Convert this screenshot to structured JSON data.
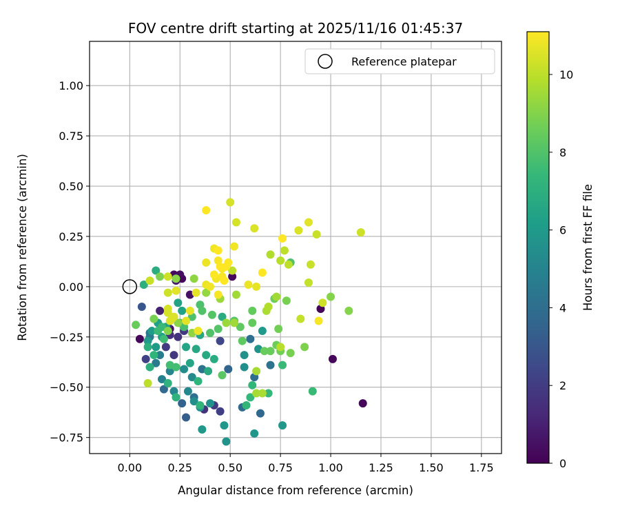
{
  "chart_data": {
    "type": "scatter",
    "title": "FOV centre drift starting at 2025/11/16 01:45:37",
    "xlabel": "Angular distance from reference (arcmin)",
    "ylabel": "Rotation from reference (arcmin)",
    "xlim": [
      -0.2,
      1.85
    ],
    "ylim": [
      -0.83,
      1.22
    ],
    "xticks": [
      0.0,
      0.25,
      0.5,
      0.75,
      1.0,
      1.25,
      1.5,
      1.75
    ],
    "xtick_labels": [
      "0.00",
      "0.25",
      "0.50",
      "0.75",
      "1.00",
      "1.25",
      "1.50",
      "1.75"
    ],
    "yticks": [
      -0.75,
      -0.5,
      -0.25,
      0.0,
      0.25,
      0.5,
      0.75,
      1.0
    ],
    "ytick_labels": [
      "−0.75",
      "−0.50",
      "−0.25",
      "0.00",
      "0.25",
      "0.50",
      "0.75",
      "1.00"
    ],
    "grid": true,
    "legend": {
      "label": "Reference platepar",
      "placement": "top-right",
      "marker": "open-circle"
    },
    "reference_point": {
      "x": 0.0,
      "y": 0.0
    },
    "colorbar": {
      "label": "Hours from first FF file",
      "range": [
        0,
        11.1
      ],
      "ticks": [
        0,
        2,
        4,
        6,
        8,
        10
      ],
      "tick_labels": [
        "0",
        "2",
        "4",
        "6",
        "8",
        "10"
      ],
      "colormap": "viridis",
      "colors": [
        "#440154",
        "#482878",
        "#3e4989",
        "#31688e",
        "#26828e",
        "#1f9e89",
        "#35b779",
        "#6ece58",
        "#b5de2b",
        "#fde725"
      ]
    },
    "points": [
      [
        0.05,
        -0.26,
        0.2
      ],
      [
        0.22,
        0.06,
        0.3
      ],
      [
        0.25,
        0.06,
        0.4
      ],
      [
        0.26,
        0.04,
        0.2
      ],
      [
        0.3,
        -0.04,
        0.5
      ],
      [
        0.2,
        -0.21,
        0.3
      ],
      [
        0.95,
        -0.11,
        0.1
      ],
      [
        1.01,
        -0.36,
        0.2
      ],
      [
        1.16,
        -0.58,
        0.2
      ],
      [
        0.51,
        0.05,
        0.3
      ],
      [
        0.15,
        -0.12,
        1.0
      ],
      [
        0.23,
        0.03,
        0.8
      ],
      [
        0.19,
        -0.2,
        1.3
      ],
      [
        0.2,
        -0.24,
        1.5
      ],
      [
        0.27,
        -0.22,
        1.8
      ],
      [
        0.24,
        -0.25,
        1.6
      ],
      [
        0.22,
        -0.34,
        1.8
      ],
      [
        0.18,
        -0.3,
        1.9
      ],
      [
        0.08,
        -0.36,
        2.2
      ],
      [
        0.37,
        -0.61,
        1.6
      ],
      [
        0.42,
        -0.59,
        1.9
      ],
      [
        0.45,
        -0.62,
        2.1
      ],
      [
        0.45,
        -0.27,
        2.4
      ],
      [
        0.06,
        -0.1,
        3.0
      ],
      [
        0.28,
        -0.65,
        3.3
      ],
      [
        0.26,
        -0.58,
        3.5
      ],
      [
        0.17,
        -0.51,
        3.8
      ],
      [
        0.32,
        -0.55,
        4.0
      ],
      [
        0.36,
        -0.41,
        4.2
      ],
      [
        0.49,
        -0.41,
        3.6
      ],
      [
        0.56,
        -0.6,
        3.8
      ],
      [
        0.65,
        -0.63,
        3.7
      ],
      [
        0.6,
        -0.26,
        4.0
      ],
      [
        0.62,
        -0.45,
        4.0
      ],
      [
        0.7,
        -0.39,
        4.2
      ],
      [
        0.1,
        -0.23,
        4.4
      ],
      [
        0.1,
        -0.25,
        4.6
      ],
      [
        0.13,
        -0.38,
        4.6
      ],
      [
        0.15,
        -0.34,
        4.8
      ],
      [
        0.16,
        -0.46,
        4.9
      ],
      [
        0.2,
        -0.42,
        5.0
      ],
      [
        0.22,
        -0.52,
        5.1
      ],
      [
        0.29,
        -0.52,
        5.2
      ],
      [
        0.31,
        -0.45,
        5.3
      ],
      [
        0.27,
        -0.41,
        5.4
      ],
      [
        0.32,
        -0.57,
        5.4
      ],
      [
        0.35,
        -0.6,
        5.5
      ],
      [
        0.4,
        -0.58,
        5.6
      ],
      [
        0.48,
        -0.77,
        5.7
      ],
      [
        0.47,
        -0.69,
        5.8
      ],
      [
        0.36,
        -0.71,
        5.9
      ],
      [
        0.62,
        -0.73,
        5.8
      ],
      [
        0.76,
        -0.69,
        5.9
      ],
      [
        0.57,
        -0.4,
        5.5
      ],
      [
        0.57,
        -0.34,
        5.6
      ],
      [
        0.64,
        -0.31,
        5.7
      ],
      [
        0.52,
        -0.17,
        5.4
      ],
      [
        0.66,
        -0.22,
        6.0
      ],
      [
        0.09,
        -0.27,
        6.0
      ],
      [
        0.11,
        -0.22,
        6.1
      ],
      [
        0.13,
        -0.3,
        6.1
      ],
      [
        0.14,
        -0.18,
        6.2
      ],
      [
        0.16,
        -0.25,
        6.2
      ],
      [
        0.18,
        -0.2,
        6.3
      ],
      [
        0.24,
        -0.08,
        6.4
      ],
      [
        0.26,
        -0.12,
        6.4
      ],
      [
        0.28,
        -0.3,
        6.5
      ],
      [
        0.3,
        -0.38,
        6.5
      ],
      [
        0.33,
        -0.31,
        6.6
      ],
      [
        0.35,
        -0.24,
        6.6
      ],
      [
        0.38,
        -0.34,
        6.7
      ],
      [
        0.39,
        -0.42,
        6.7
      ],
      [
        0.42,
        -0.36,
        6.8
      ],
      [
        0.46,
        -0.15,
        6.8
      ],
      [
        0.13,
        0.08,
        6.9
      ],
      [
        0.07,
        0.01,
        7.0
      ],
      [
        0.1,
        -0.4,
        7.0
      ],
      [
        0.19,
        -0.48,
        7.1
      ],
      [
        0.23,
        -0.55,
        7.1
      ],
      [
        0.34,
        -0.47,
        7.2
      ],
      [
        0.35,
        -0.59,
        7.2
      ],
      [
        0.58,
        -0.59,
        7.3
      ],
      [
        0.61,
        -0.49,
        7.3
      ],
      [
        0.6,
        -0.55,
        7.4
      ],
      [
        0.69,
        -0.53,
        7.4
      ],
      [
        0.76,
        -0.39,
        7.5
      ],
      [
        0.91,
        -0.52,
        7.5
      ],
      [
        0.09,
        -0.3,
        7.0
      ],
      [
        0.12,
        -0.34,
        7.2
      ],
      [
        0.14,
        -0.22,
        7.5
      ],
      [
        0.16,
        -0.2,
        7.5
      ],
      [
        0.17,
        -0.26,
        7.6
      ],
      [
        0.2,
        -0.39,
        7.7
      ],
      [
        0.23,
        -0.4,
        7.7
      ],
      [
        0.25,
        -0.18,
        7.8
      ],
      [
        0.27,
        -0.2,
        7.8
      ],
      [
        0.31,
        -0.15,
        7.9
      ],
      [
        0.35,
        -0.09,
        7.9
      ],
      [
        0.36,
        -0.12,
        8.0
      ],
      [
        0.4,
        -0.23,
        8.0
      ],
      [
        0.41,
        -0.14,
        8.1
      ],
      [
        0.44,
        -0.21,
        8.1
      ],
      [
        0.46,
        -0.44,
        8.2
      ],
      [
        0.52,
        -0.17,
        8.2
      ],
      [
        0.55,
        -0.2,
        8.3
      ],
      [
        0.56,
        -0.27,
        8.3
      ],
      [
        0.61,
        -0.18,
        8.4
      ],
      [
        0.61,
        -0.12,
        8.4
      ],
      [
        0.67,
        -0.32,
        8.5
      ],
      [
        0.7,
        -0.32,
        8.5
      ],
      [
        0.72,
        -0.06,
        8.6
      ],
      [
        0.73,
        -0.29,
        8.6
      ],
      [
        0.74,
        -0.21,
        8.7
      ],
      [
        0.75,
        -0.32,
        8.7
      ],
      [
        0.78,
        -0.07,
        8.8
      ],
      [
        0.8,
        -0.33,
        8.8
      ],
      [
        0.87,
        -0.3,
        8.9
      ],
      [
        1.0,
        -0.05,
        9.0
      ],
      [
        1.09,
        -0.12,
        9.0
      ],
      [
        0.03,
        -0.19,
        8.5
      ],
      [
        0.12,
        -0.16,
        8.8
      ],
      [
        0.15,
        0.05,
        8.9
      ],
      [
        0.19,
        -0.22,
        9.0
      ],
      [
        0.23,
        0.04,
        9.1
      ],
      [
        0.24,
        -0.18,
        9.1
      ],
      [
        0.31,
        -0.23,
        9.2
      ],
      [
        0.32,
        0.04,
        9.2
      ],
      [
        0.38,
        -0.03,
        9.3
      ],
      [
        0.45,
        -0.06,
        9.4
      ],
      [
        0.48,
        -0.18,
        9.4
      ],
      [
        0.52,
        -0.18,
        9.5
      ],
      [
        0.53,
        -0.04,
        9.5
      ],
      [
        0.63,
        -0.42,
        9.6
      ],
      [
        0.63,
        -0.53,
        9.6
      ],
      [
        0.66,
        -0.53,
        9.7
      ],
      [
        0.68,
        -0.12,
        9.7
      ],
      [
        0.69,
        -0.1,
        9.8
      ],
      [
        0.7,
        0.16,
        9.8
      ],
      [
        0.75,
        0.13,
        9.9
      ],
      [
        0.75,
        -0.3,
        9.9
      ],
      [
        0.77,
        0.18,
        10.0
      ],
      [
        0.79,
        0.11,
        10.0
      ],
      [
        0.85,
        -0.16,
        10.1
      ],
      [
        0.89,
        0.02,
        10.1
      ],
      [
        0.9,
        0.11,
        10.2
      ],
      [
        0.93,
        0.26,
        10.2
      ],
      [
        0.96,
        -0.08,
        10.3
      ],
      [
        1.15,
        0.27,
        10.3
      ],
      [
        0.5,
        0.42,
        10.4
      ],
      [
        0.53,
        0.32,
        10.4
      ],
      [
        0.62,
        0.29,
        10.5
      ],
      [
        0.84,
        0.28,
        10.5
      ],
      [
        0.89,
        0.32,
        10.6
      ],
      [
        0.09,
        -0.48,
        10.0
      ],
      [
        0.1,
        0.03,
        10.2
      ],
      [
        0.19,
        0.05,
        10.3
      ],
      [
        0.19,
        -0.03,
        10.3
      ],
      [
        0.19,
        -0.13,
        10.4
      ],
      [
        0.19,
        -0.11,
        10.4
      ],
      [
        0.2,
        -0.17,
        10.5
      ],
      [
        0.21,
        -0.16,
        10.5
      ],
      [
        0.22,
        -0.15,
        10.5
      ],
      [
        0.23,
        -0.02,
        10.6
      ],
      [
        0.28,
        -0.17,
        10.6
      ],
      [
        0.3,
        -0.12,
        10.7
      ],
      [
        0.33,
        -0.03,
        10.7
      ],
      [
        0.34,
        -0.22,
        10.8
      ],
      [
        0.38,
        0.12,
        10.8
      ],
      [
        0.38,
        0.01,
        10.8
      ],
      [
        0.4,
        0.0,
        10.9
      ],
      [
        0.42,
        0.19,
        10.9
      ],
      [
        0.43,
        0.04,
        10.9
      ],
      [
        0.44,
        0.13,
        11.0
      ],
      [
        0.44,
        -0.04,
        11.0
      ],
      [
        0.46,
        0.09,
        11.0
      ],
      [
        0.46,
        0.05,
        11.0
      ],
      [
        0.47,
        0.03,
        11.1
      ],
      [
        0.48,
        0.1,
        11.1
      ],
      [
        0.49,
        0.12,
        11.1
      ],
      [
        0.52,
        0.2,
        10.9
      ],
      [
        0.59,
        0.01,
        10.8
      ],
      [
        0.63,
        0.0,
        10.7
      ],
      [
        0.38,
        0.38,
        11.1
      ],
      [
        0.44,
        0.18,
        11.1
      ],
      [
        0.42,
        0.06,
        11.1
      ],
      [
        0.45,
        0.1,
        11.1
      ],
      [
        0.66,
        0.07,
        11.1
      ],
      [
        0.76,
        0.24,
        11.1
      ],
      [
        0.94,
        -0.17,
        11.0
      ],
      [
        0.51,
        0.08,
        10.0
      ],
      [
        0.73,
        -0.05,
        9.5
      ],
      [
        0.8,
        0.12,
        8.0
      ]
    ]
  }
}
